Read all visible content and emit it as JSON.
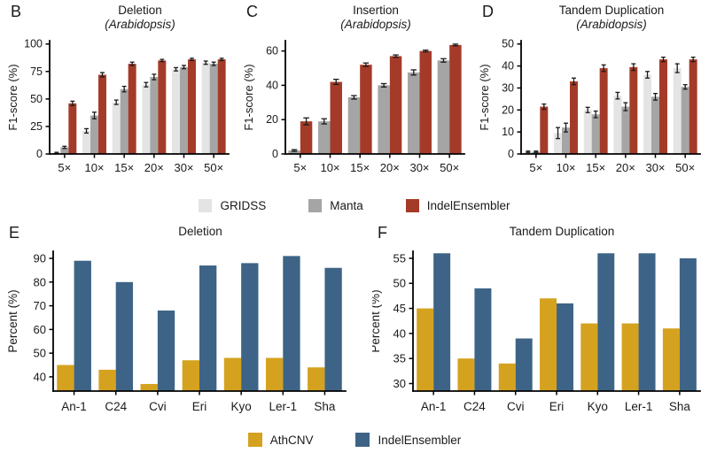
{
  "legends": {
    "top": {
      "items": [
        {
          "label": "GRIDSS",
          "color": "#E4E4E4"
        },
        {
          "label": "Manta",
          "color": "#A5A5A5"
        },
        {
          "label": "IndelEnsembler",
          "color": "#A43B28"
        }
      ]
    },
    "bottom": {
      "items": [
        {
          "label": "AthCNV",
          "color": "#D5A21F"
        },
        {
          "label": "IndelEnsembler",
          "color": "#3D6486"
        }
      ]
    }
  },
  "chart_data": [
    {
      "id": "B",
      "type": "bar",
      "title": "Deletion",
      "subtitle": "(Arabidopsis)",
      "ylabel": "F1-score (%)",
      "categories": [
        "5×",
        "10×",
        "15×",
        "20×",
        "30×",
        "50×"
      ],
      "ylim": [
        0,
        103
      ],
      "yticks": [
        0,
        25,
        50,
        75,
        100
      ],
      "grid": false,
      "series": [
        {
          "name": "GRIDSS",
          "color": "#E4E4E4",
          "values": [
            1,
            21,
            47,
            63,
            77,
            83
          ],
          "errors": [
            0.5,
            2,
            2,
            2,
            1.5,
            1.5
          ]
        },
        {
          "name": "Manta",
          "color": "#A5A5A5",
          "values": [
            6,
            35,
            59,
            70,
            79,
            82
          ],
          "errors": [
            1,
            3,
            2.5,
            2.5,
            1.5,
            1.5
          ]
        },
        {
          "name": "IndelEnsembler",
          "color": "#A43B28",
          "values": [
            46,
            72,
            82,
            85,
            86,
            86
          ],
          "errors": [
            2,
            2,
            1.5,
            1,
            1,
            1
          ]
        }
      ]
    },
    {
      "id": "C",
      "type": "bar",
      "title": "Insertion",
      "subtitle": "(Arabidopsis)",
      "ylabel": "F1-score (%)",
      "categories": [
        "5×",
        "10×",
        "15×",
        "20×",
        "30×",
        "50×"
      ],
      "ylim": [
        0,
        66
      ],
      "yticks": [
        0,
        20,
        40,
        60
      ],
      "grid": false,
      "series": [
        {
          "name": "Manta",
          "color": "#A5A5A5",
          "values": [
            2,
            19,
            33,
            40,
            47.5,
            54.5
          ],
          "errors": [
            0.5,
            1.5,
            1,
            1,
            1.5,
            1
          ]
        },
        {
          "name": "IndelEnsembler",
          "color": "#A43B28",
          "values": [
            19,
            42,
            52,
            57,
            60,
            63.5
          ],
          "errors": [
            2,
            1.5,
            1,
            0.7,
            0.5,
            0.5
          ]
        }
      ]
    },
    {
      "id": "D",
      "type": "bar",
      "title": "Tandem Duplication",
      "subtitle": "(Arabidopsis)",
      "ylabel": "F1-score (%)",
      "categories": [
        "5×",
        "10×",
        "15×",
        "20×",
        "30×",
        "50×"
      ],
      "ylim": [
        0,
        51.5
      ],
      "yticks": [
        0,
        10,
        20,
        30,
        40,
        50
      ],
      "grid": false,
      "series": [
        {
          "name": "GRIDSS",
          "color": "#E4E4E4",
          "values": [
            1,
            9.5,
            20,
            26.5,
            36,
            39
          ],
          "errors": [
            0.3,
            2.5,
            1.2,
            1.5,
            1.5,
            2
          ]
        },
        {
          "name": "Manta",
          "color": "#A5A5A5",
          "values": [
            1,
            12,
            18,
            21.5,
            26,
            30.5
          ],
          "errors": [
            0.3,
            2,
            1.5,
            1.8,
            1.5,
            1
          ]
        },
        {
          "name": "IndelEnsembler",
          "color": "#A43B28",
          "values": [
            21.5,
            33,
            39,
            39.5,
            43,
            43
          ],
          "errors": [
            1.2,
            1.5,
            1.5,
            1.5,
            1,
            1
          ]
        }
      ]
    },
    {
      "id": "E",
      "type": "bar",
      "title": "Deletion",
      "subtitle": "",
      "ylabel": "Percent (%)",
      "categories": [
        "An-1",
        "C24",
        "Cvi",
        "Eri",
        "Kyo",
        "Ler-1",
        "Sha"
      ],
      "ylim": [
        34,
        93
      ],
      "yticks": [
        40,
        50,
        60,
        70,
        80,
        90
      ],
      "grid": false,
      "series": [
        {
          "name": "AthCNV",
          "color": "#D5A21F",
          "values": [
            45,
            43,
            37,
            47,
            48,
            48,
            44
          ]
        },
        {
          "name": "IndelEnsembler",
          "color": "#3D6486",
          "values": [
            89,
            80,
            68,
            87,
            88,
            91,
            86
          ]
        }
      ]
    },
    {
      "id": "F",
      "type": "bar",
      "title": "Tandem Duplication",
      "subtitle": "",
      "ylabel": "Percent (%)",
      "categories": [
        "An-1",
        "C24",
        "Cvi",
        "Eri",
        "Kyo",
        "Ler-1",
        "Sha"
      ],
      "ylim": [
        28.5,
        56.4
      ],
      "yticks": [
        30,
        35,
        40,
        45,
        50,
        55
      ],
      "grid": false,
      "series": [
        {
          "name": "AthCNV",
          "color": "#D5A21F",
          "values": [
            45,
            35,
            34,
            47,
            42,
            42,
            41
          ]
        },
        {
          "name": "IndelEnsembler",
          "color": "#3D6486",
          "values": [
            56,
            49,
            39,
            46,
            56,
            56,
            55
          ]
        }
      ]
    }
  ]
}
